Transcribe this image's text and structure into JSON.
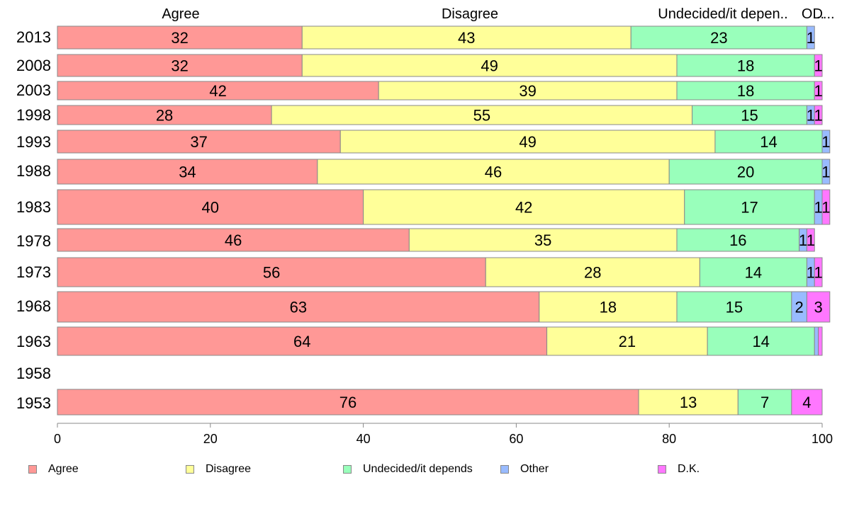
{
  "chart_data": {
    "type": "bar",
    "orientation": "horizontal",
    "stacked": true,
    "categories": [
      "2013",
      "2008",
      "2003",
      "1998",
      "1993",
      "1988",
      "1983",
      "1978",
      "1973",
      "1968",
      "1963",
      "1958",
      "1953"
    ],
    "series": [
      {
        "name": "Agree",
        "color": "#ff9896",
        "values": [
          32,
          32,
          42,
          28,
          37,
          34,
          40,
          46,
          56,
          63,
          64,
          null,
          76
        ]
      },
      {
        "name": "Disagree",
        "color": "#ffff99",
        "values": [
          43,
          49,
          39,
          55,
          49,
          46,
          42,
          35,
          28,
          18,
          21,
          null,
          13
        ]
      },
      {
        "name": "Undecided/it depends",
        "color": "#99ffbb",
        "values": [
          23,
          18,
          18,
          15,
          14,
          20,
          17,
          16,
          14,
          15,
          14,
          null,
          7
        ]
      },
      {
        "name": "Other",
        "color": "#99bbff",
        "values": [
          1,
          0,
          0,
          1,
          1,
          1,
          1,
          1,
          1,
          2,
          0.5,
          null,
          0
        ]
      },
      {
        "name": "D.K.",
        "color": "#ff77ff",
        "values": [
          0,
          1,
          1,
          1,
          0,
          0,
          1,
          1,
          1,
          3,
          0.5,
          null,
          4
        ]
      }
    ],
    "top_labels": [
      "Agree",
      "Disagree",
      "Undecided/it depen..",
      "O...",
      "D..."
    ],
    "xlim": [
      0,
      100
    ],
    "xticks": [
      "0",
      "20",
      "40",
      "60",
      "80",
      "100"
    ],
    "grid": false,
    "legend_position": "bottom"
  }
}
